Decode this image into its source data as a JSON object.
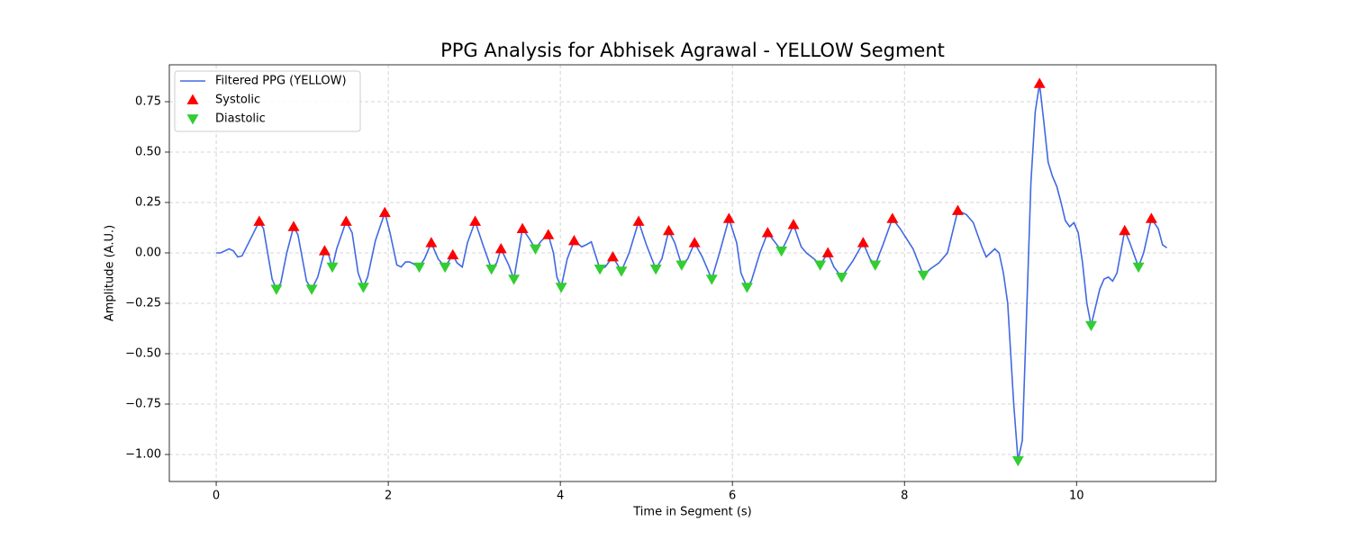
{
  "chart_data": {
    "type": "line",
    "title": "PPG Analysis for Abhisek Agrawal - YELLOW Segment",
    "x_label": "Time in Segment (s)",
    "y_label": "Amplitude (A.U.)",
    "xlim": [
      -0.545,
      11.62
    ],
    "ylim": [
      -1.134,
      0.933
    ],
    "xticks": [
      0,
      2,
      4,
      6,
      8,
      10
    ],
    "yticks": [
      {
        "value": -1.0,
        "label": "−1.00"
      },
      {
        "value": -0.75,
        "label": "−0.75"
      },
      {
        "value": -0.5,
        "label": "−0.50"
      },
      {
        "value": -0.25,
        "label": "−0.25"
      },
      {
        "value": 0,
        "label": "0.00"
      },
      {
        "value": 0.25,
        "label": "0.25"
      },
      {
        "value": 0.5,
        "label": "0.50"
      },
      {
        "value": 0.75,
        "label": "0.75"
      }
    ],
    "grid": true,
    "legend": "upper left",
    "series": [
      {
        "name": "Filtered PPG (YELLOW)",
        "type": "line",
        "color": "#4169e1",
        "x": [
          0,
          0.05,
          0.15,
          0.2,
          0.25,
          0.3,
          0.4,
          0.5,
          0.55,
          0.65,
          0.7,
          0.75,
          0.82,
          0.9,
          0.95,
          1.05,
          1.11,
          1.18,
          1.26,
          1.3,
          1.35,
          1.4,
          1.51,
          1.58,
          1.65,
          1.71,
          1.76,
          1.85,
          1.96,
          2.02,
          2.1,
          2.15,
          2.2,
          2.25,
          2.36,
          2.42,
          2.5,
          2.58,
          2.66,
          2.75,
          2.8,
          2.86,
          2.92,
          3.01,
          3.1,
          3.2,
          3.26,
          3.31,
          3.4,
          3.46,
          3.5,
          3.56,
          3.64,
          3.71,
          3.78,
          3.86,
          3.92,
          3.96,
          4.01,
          4.08,
          4.16,
          4.25,
          4.3,
          4.36,
          4.46,
          4.52,
          4.61,
          4.71,
          4.8,
          4.91,
          5.0,
          5.11,
          5.18,
          5.26,
          5.33,
          5.41,
          5.48,
          5.56,
          5.65,
          5.76,
          5.85,
          5.96,
          6.05,
          6.1,
          6.17,
          6.22,
          6.32,
          6.41,
          6.5,
          6.57,
          6.64,
          6.71,
          6.8,
          6.86,
          6.95,
          7.02,
          7.11,
          7.18,
          7.27,
          7.4,
          7.52,
          7.6,
          7.66,
          7.75,
          7.86,
          7.95,
          8.1,
          8.22,
          8.3,
          8.4,
          8.5,
          8.62,
          8.72,
          8.8,
          8.9,
          8.95,
          9.0,
          9.05,
          9.1,
          9.15,
          9.2,
          9.27,
          9.32,
          9.37,
          9.42,
          9.47,
          9.52,
          9.57,
          9.62,
          9.67,
          9.72,
          9.77,
          9.82,
          9.87,
          9.92,
          9.97,
          10.02,
          10.07,
          10.12,
          10.17,
          10.22,
          10.27,
          10.32,
          10.37,
          10.42,
          10.47,
          10.56,
          10.62,
          10.72,
          10.78,
          10.87,
          10.95,
          11.0,
          11.05
        ],
        "values": [
          0,
          0,
          0.02,
          0.01,
          -0.02,
          -0.015,
          0.07,
          0.156,
          0.12,
          -0.13,
          -0.18,
          -0.15,
          0.0,
          0.13,
          0.09,
          -0.14,
          -0.18,
          -0.12,
          0.01,
          0.0,
          -0.07,
          0.02,
          0.156,
          0.1,
          -0.1,
          -0.17,
          -0.12,
          0.06,
          0.2,
          0.1,
          -0.06,
          -0.07,
          -0.045,
          -0.045,
          -0.07,
          -0.03,
          0.05,
          -0.03,
          -0.07,
          -0.01,
          -0.05,
          -0.07,
          0.05,
          0.156,
          0.04,
          -0.08,
          -0.05,
          0.02,
          -0.06,
          -0.13,
          -0.03,
          0.12,
          0.07,
          0.02,
          0.06,
          0.09,
          0.0,
          -0.12,
          -0.17,
          -0.03,
          0.06,
          0.03,
          0.04,
          0.055,
          -0.08,
          -0.07,
          -0.02,
          -0.09,
          0.0,
          0.156,
          0.04,
          -0.08,
          -0.03,
          0.11,
          0.05,
          -0.06,
          -0.03,
          0.05,
          -0.02,
          -0.13,
          0.0,
          0.17,
          0.05,
          -0.1,
          -0.17,
          -0.14,
          0.0,
          0.1,
          0.05,
          0.01,
          0.07,
          0.14,
          0.03,
          0.0,
          -0.03,
          -0.06,
          0.0,
          -0.07,
          -0.12,
          -0.04,
          0.05,
          -0.03,
          -0.06,
          0.04,
          0.17,
          0.12,
          0.02,
          -0.11,
          -0.08,
          -0.05,
          0.0,
          0.21,
          0.19,
          0.15,
          0.03,
          -0.02,
          0.0,
          0.02,
          0.0,
          -0.1,
          -0.25,
          -0.75,
          -1.03,
          -0.93,
          -0.3,
          0.35,
          0.7,
          0.84,
          0.65,
          0.45,
          0.38,
          0.33,
          0.25,
          0.16,
          0.13,
          0.15,
          0.1,
          -0.05,
          -0.25,
          -0.36,
          -0.27,
          -0.18,
          -0.13,
          -0.12,
          -0.14,
          -0.1,
          0.11,
          0.05,
          -0.07,
          0.0,
          0.17,
          0.12,
          0.04,
          0.025
        ]
      },
      {
        "name": "Systolic",
        "type": "scatter",
        "marker": "triangle-up",
        "color": "#ff0000",
        "x": [
          0.5,
          0.9,
          1.26,
          1.51,
          1.96,
          2.5,
          2.75,
          3.01,
          3.31,
          3.56,
          3.86,
          4.16,
          4.61,
          4.91,
          5.26,
          5.56,
          5.96,
          6.41,
          6.71,
          7.11,
          7.52,
          7.86,
          8.62,
          9.57,
          10.56,
          10.87
        ],
        "values": [
          0.156,
          0.13,
          0.01,
          0.156,
          0.2,
          0.05,
          -0.01,
          0.156,
          0.02,
          0.12,
          0.09,
          0.06,
          -0.02,
          0.156,
          0.11,
          0.05,
          0.17,
          0.1,
          0.14,
          0.0,
          0.05,
          0.17,
          0.21,
          0.84,
          0.11,
          0.17
        ]
      },
      {
        "name": "Diastolic",
        "type": "scatter",
        "marker": "triangle-down",
        "color": "#32cd32",
        "x": [
          0.7,
          1.11,
          1.35,
          1.71,
          2.36,
          2.66,
          3.2,
          3.46,
          3.71,
          4.01,
          4.46,
          4.71,
          5.11,
          5.41,
          5.76,
          6.17,
          6.57,
          7.02,
          7.27,
          7.66,
          8.22,
          9.32,
          10.17,
          10.72
        ],
        "values": [
          -0.18,
          -0.18,
          -0.07,
          -0.17,
          -0.07,
          -0.07,
          -0.08,
          -0.13,
          0.02,
          -0.17,
          -0.08,
          -0.09,
          -0.08,
          -0.06,
          -0.13,
          -0.17,
          0.01,
          -0.06,
          -0.12,
          -0.06,
          -0.11,
          -1.03,
          -0.36,
          -0.07
        ]
      }
    ]
  }
}
